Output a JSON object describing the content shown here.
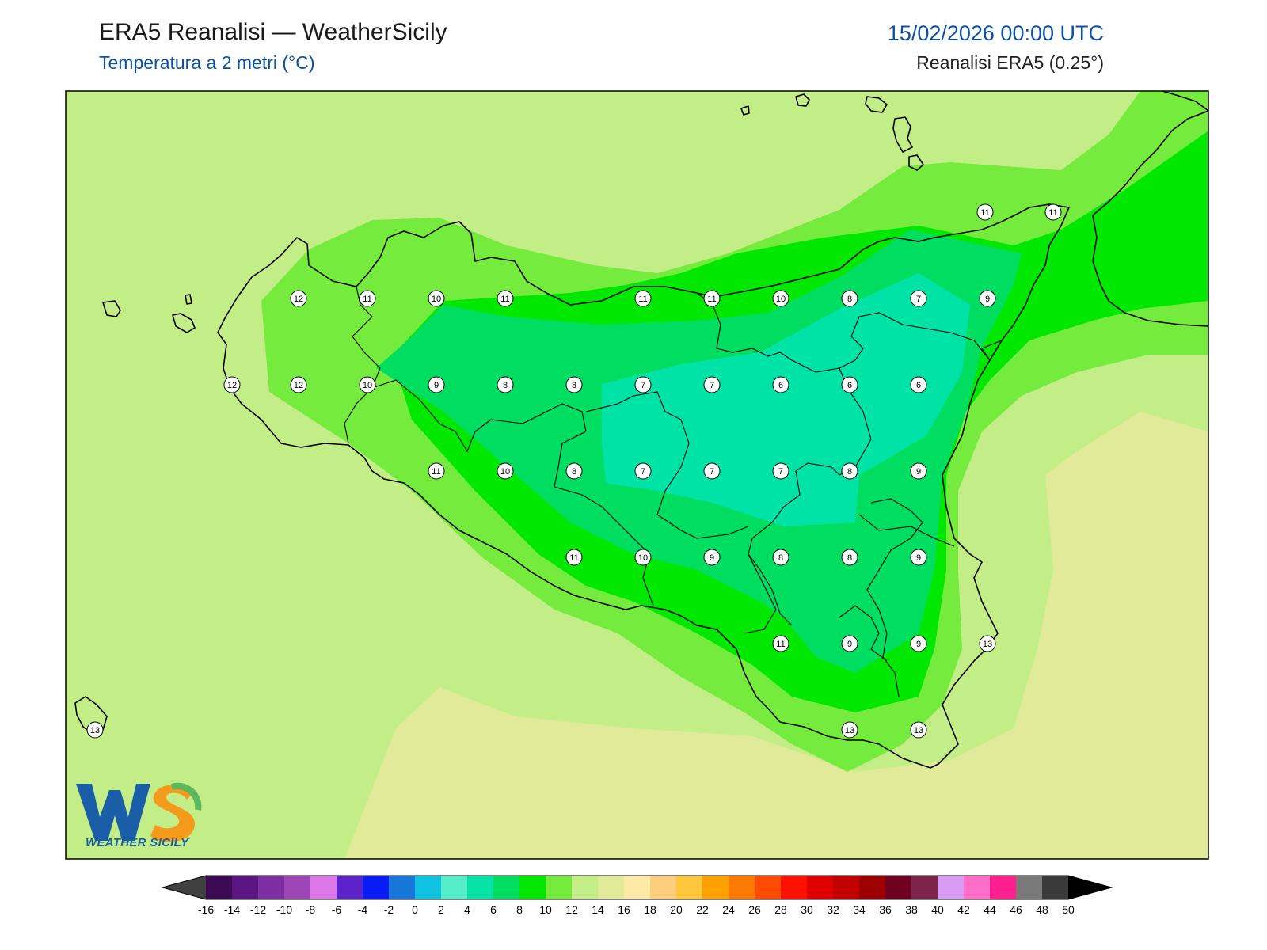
{
  "header": {
    "title": "ERA5 Reanalisi — WeatherSicily",
    "subtitle": "Temperatura a 2 metri (°C)",
    "datetime": "15/02/2026 00:00 UTC",
    "source": "Reanalisi ERA5 (0.25°)"
  },
  "logo": {
    "text": "WEATHER SICILY",
    "letters": "WS",
    "colors": {
      "blue": "#1b5ea8",
      "orange": "#f59a1b",
      "green": "#5cb85c"
    }
  },
  "colorbar": {
    "levels": [
      -16,
      -14,
      -12,
      -10,
      -8,
      -6,
      -4,
      -2,
      0,
      2,
      4,
      6,
      8,
      10,
      12,
      14,
      16,
      18,
      20,
      22,
      24,
      26,
      28,
      30,
      32,
      34,
      36,
      38,
      40,
      42,
      44,
      46,
      48,
      50
    ],
    "colors": [
      "#3c0a52",
      "#5a1582",
      "#7e2ea3",
      "#9d45b5",
      "#dd77e8",
      "#5b23c9",
      "#0a1cf5",
      "#1676d9",
      "#11c3e3",
      "#55eec8",
      "#06e3a6",
      "#00de61",
      "#00e800",
      "#75ec3d",
      "#c3ee87",
      "#e0ea98",
      "#ffe9a6",
      "#ffce7d",
      "#ffc83c",
      "#ffa200",
      "#ff7b00",
      "#ff4b00",
      "#ff1000",
      "#e00000",
      "#c20000",
      "#9d0000",
      "#6f0020",
      "#7d2349",
      "#d89cf4",
      "#ff6fc9",
      "#ff1f8e",
      "#7a7a7a",
      "#3a3a3a"
    ],
    "under_color": "#404040",
    "over_color": "#000000"
  },
  "fill_colors": {
    "t6": "#00e3a6",
    "t7": "#00de61",
    "t8": "#00e800",
    "t10": "#75ec3d",
    "t12": "#c3ee87",
    "t14": "#e0ea98",
    "coast": "#000000",
    "marker_bg": "#ffffff"
  },
  "stations": [
    {
      "v": "11"
    },
    {
      "v": "11"
    },
    {
      "v": "12"
    },
    {
      "v": "11"
    },
    {
      "v": "10"
    },
    {
      "v": "11"
    },
    {
      "v": "11"
    },
    {
      "v": "11"
    },
    {
      "v": "10"
    },
    {
      "v": "8"
    },
    {
      "v": "7"
    },
    {
      "v": "9"
    },
    {
      "v": "12"
    },
    {
      "v": "12"
    },
    {
      "v": "10"
    },
    {
      "v": "9"
    },
    {
      "v": "8"
    },
    {
      "v": "8"
    },
    {
      "v": "7"
    },
    {
      "v": "7"
    },
    {
      "v": "6"
    },
    {
      "v": "6"
    },
    {
      "v": "6"
    },
    {
      "v": "11"
    },
    {
      "v": "10"
    },
    {
      "v": "8"
    },
    {
      "v": "7"
    },
    {
      "v": "7"
    },
    {
      "v": "7"
    },
    {
      "v": "8"
    },
    {
      "v": "9"
    },
    {
      "v": "11"
    },
    {
      "v": "10"
    },
    {
      "v": "9"
    },
    {
      "v": "8"
    },
    {
      "v": "8"
    },
    {
      "v": "9"
    },
    {
      "v": "11"
    },
    {
      "v": "9"
    },
    {
      "v": "9"
    },
    {
      "v": "13"
    },
    {
      "v": "13"
    },
    {
      "v": "13"
    },
    {
      "v": "13"
    }
  ]
}
